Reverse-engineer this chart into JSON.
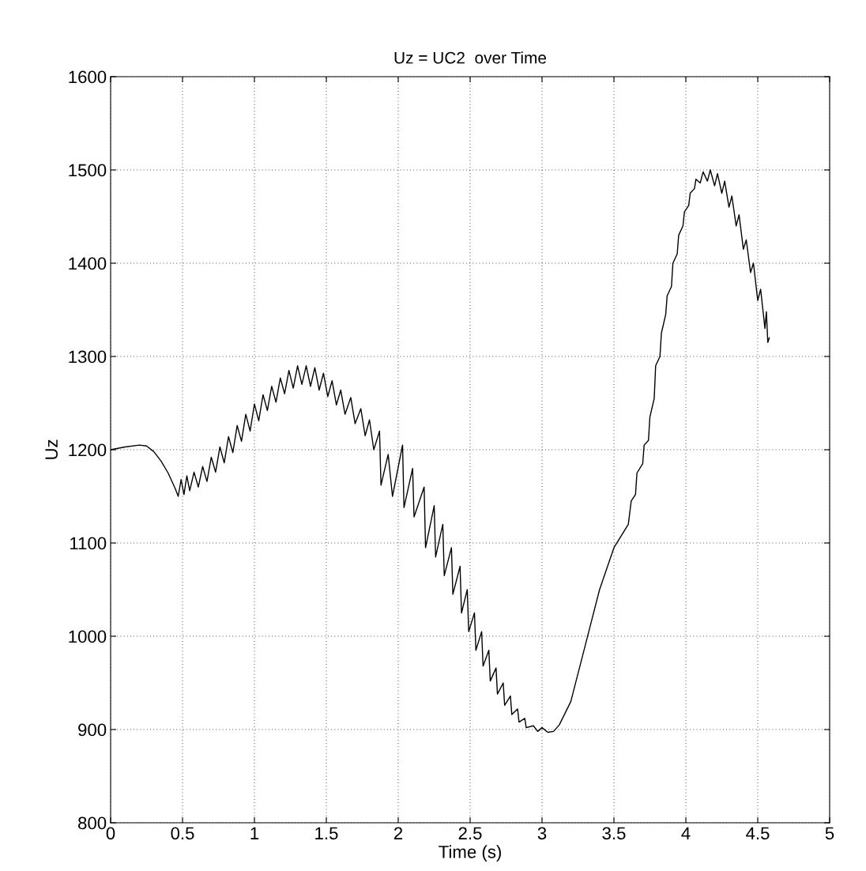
{
  "chart_data": {
    "type": "line",
    "title": "Uz = UC2  over Time",
    "xlabel": "Time (s)",
    "ylabel": "Uz",
    "xlim": [
      0,
      5
    ],
    "ylim": [
      800,
      1600
    ],
    "xticks": [
      0,
      0.5,
      1,
      1.5,
      2,
      2.5,
      3,
      3.5,
      4,
      4.5,
      5
    ],
    "yticks": [
      800,
      900,
      1000,
      1100,
      1200,
      1300,
      1400,
      1500,
      1600
    ],
    "grid": true,
    "line_style": "solid",
    "marker": "none",
    "series": [
      {
        "color": "#000000",
        "x": [
          0,
          0.1,
          0.2,
          0.25,
          0.3,
          0.35,
          0.4,
          0.45,
          0.47,
          0.49,
          0.51,
          0.53,
          0.55,
          0.58,
          0.61,
          0.64,
          0.67,
          0.7,
          0.73,
          0.76,
          0.79,
          0.82,
          0.85,
          0.88,
          0.91,
          0.94,
          0.97,
          1.0,
          1.03,
          1.06,
          1.09,
          1.12,
          1.15,
          1.18,
          1.21,
          1.24,
          1.27,
          1.3,
          1.33,
          1.36,
          1.39,
          1.42,
          1.45,
          1.48,
          1.51,
          1.54,
          1.57,
          1.6,
          1.63,
          1.67,
          1.7,
          1.74,
          1.77,
          1.8,
          1.83,
          1.87,
          1.88,
          1.93,
          1.96,
          2.03,
          2.04,
          2.1,
          2.11,
          2.18,
          2.19,
          2.25,
          2.26,
          2.31,
          2.32,
          2.37,
          2.38,
          2.43,
          2.44,
          2.48,
          2.49,
          2.53,
          2.54,
          2.58,
          2.59,
          2.63,
          2.64,
          2.68,
          2.69,
          2.73,
          2.74,
          2.78,
          2.79,
          2.83,
          2.84,
          2.88,
          2.89,
          2.94,
          2.97,
          3.0,
          3.04,
          3.08,
          3.12,
          3.2,
          3.3,
          3.4,
          3.5,
          3.6,
          3.62,
          3.65,
          3.66,
          3.7,
          3.71,
          3.74,
          3.75,
          3.78,
          3.79,
          3.82,
          3.83,
          3.86,
          3.87,
          3.9,
          3.91,
          3.94,
          3.95,
          3.98,
          3.99,
          4.02,
          4.03,
          4.06,
          4.07,
          4.1,
          4.12,
          4.15,
          4.17,
          4.2,
          4.22,
          4.25,
          4.27,
          4.3,
          4.32,
          4.35,
          4.37,
          4.4,
          4.42,
          4.45,
          4.47,
          4.5,
          4.52,
          4.55,
          4.56,
          4.57,
          4.58
        ],
        "values": [
          1200,
          1203,
          1205,
          1204,
          1198,
          1188,
          1175,
          1158,
          1150,
          1168,
          1152,
          1172,
          1156,
          1176,
          1160,
          1182,
          1166,
          1192,
          1176,
          1203,
          1186,
          1214,
          1197,
          1226,
          1209,
          1238,
          1220,
          1249,
          1231,
          1259,
          1242,
          1268,
          1251,
          1277,
          1260,
          1285,
          1266,
          1290,
          1270,
          1290,
          1268,
          1288,
          1264,
          1282,
          1257,
          1274,
          1248,
          1264,
          1238,
          1256,
          1228,
          1244,
          1215,
          1232,
          1200,
          1220,
          1162,
          1195,
          1150,
          1205,
          1138,
          1180,
          1128,
          1160,
          1095,
          1140,
          1085,
          1120,
          1065,
          1095,
          1045,
          1075,
          1025,
          1050,
          1005,
          1025,
          985,
          1005,
          968,
          985,
          952,
          966,
          938,
          950,
          926,
          936,
          916,
          922,
          908,
          912,
          902,
          904,
          898,
          902,
          897,
          898,
          905,
          930,
          990,
          1050,
          1095,
          1120,
          1145,
          1152,
          1175,
          1185,
          1205,
          1210,
          1235,
          1255,
          1290,
          1300,
          1325,
          1345,
          1365,
          1375,
          1400,
          1410,
          1430,
          1440,
          1455,
          1462,
          1475,
          1480,
          1490,
          1486,
          1498,
          1488,
          1500,
          1483,
          1496,
          1475,
          1488,
          1460,
          1472,
          1440,
          1452,
          1415,
          1425,
          1390,
          1400,
          1360,
          1372,
          1330,
          1348,
          1315,
          1320
        ]
      }
    ]
  }
}
